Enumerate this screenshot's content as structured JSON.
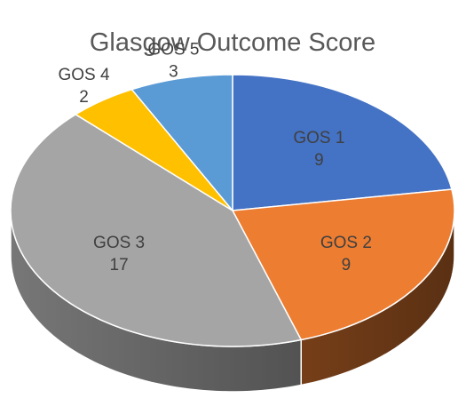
{
  "chart_data": {
    "type": "pie",
    "style": "3d",
    "title": "Glasgow Outcome Score",
    "categories": [
      "GOS 1",
      "GOS 2",
      "GOS 3",
      "GOS 4",
      "GOS 5"
    ],
    "values": [
      9,
      9,
      17,
      2,
      3
    ],
    "colors": [
      "#4472C4",
      "#ED7D31",
      "#A5A5A5",
      "#FFC000",
      "#5B9BD5"
    ],
    "legend": "none",
    "data_labels": "category and value"
  }
}
